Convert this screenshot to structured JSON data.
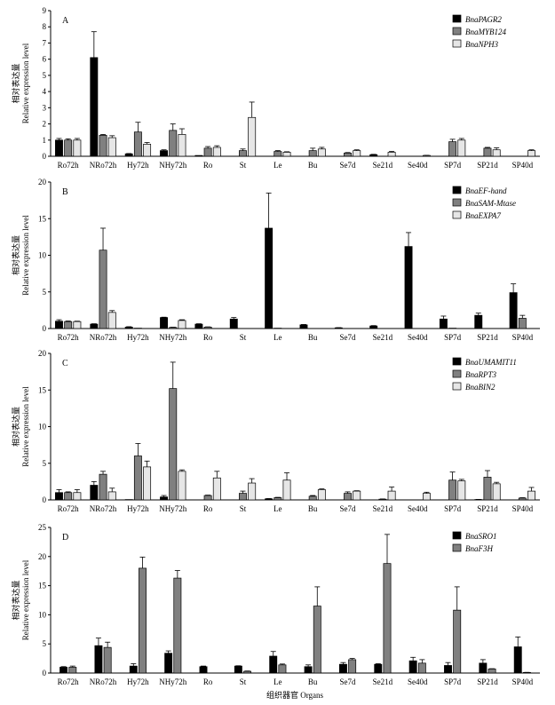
{
  "x_axis_title": "组织器官 Organs",
  "y_axis_title_cn": "相对表达量",
  "y_axis_title_en": "Relative expression level",
  "colors": {
    "black": "#000000",
    "gray": "#808080",
    "light": "#e6e6e6"
  },
  "chart_data": [
    {
      "type": "bar",
      "panel": "A",
      "categories": [
        "Ro72h",
        "NRo72h",
        "Hy72h",
        "NHy72h",
        "Ro",
        "St",
        "Le",
        "Bu",
        "Se7d",
        "Se21d",
        "Se40d",
        "SP7d",
        "SP21d",
        "SP40d"
      ],
      "ylim": [
        0,
        9
      ],
      "yticks": [
        0,
        1,
        2,
        3,
        4,
        5,
        6,
        7,
        8,
        9
      ],
      "legend_position": "top-right",
      "series": [
        {
          "name": "BnaPAGR2",
          "color": "#000000",
          "values": [
            1.0,
            6.1,
            0.15,
            0.35,
            0.05,
            0.0,
            0.0,
            0.0,
            0.0,
            0.1,
            0.0,
            0.0,
            0.0,
            0.0
          ],
          "errors": [
            0.1,
            1.6,
            0.02,
            0.05,
            0.0,
            0.0,
            0.0,
            0.0,
            0.0,
            0.02,
            0.0,
            0.0,
            0.0,
            0.0
          ]
        },
        {
          "name": "BnaMYB124",
          "color": "#808080",
          "values": [
            1.0,
            1.3,
            1.5,
            1.6,
            0.5,
            0.35,
            0.3,
            0.35,
            0.2,
            0.0,
            0.0,
            0.9,
            0.5,
            0.0
          ],
          "errors": [
            0.08,
            0.05,
            0.6,
            0.4,
            0.1,
            0.1,
            0.05,
            0.15,
            0.03,
            0.0,
            0.0,
            0.15,
            0.05,
            0.0
          ],
          "skip": [
            false,
            false,
            false,
            false,
            false,
            false,
            false,
            false,
            false,
            true,
            true,
            false,
            false,
            true
          ]
        },
        {
          "name": "BnaNPH3",
          "color": "#e6e6e6",
          "values": [
            1.0,
            1.15,
            0.75,
            1.35,
            0.55,
            2.4,
            0.25,
            0.45,
            0.35,
            0.25,
            0.05,
            1.0,
            0.4,
            0.35
          ],
          "errors": [
            0.1,
            0.12,
            0.1,
            0.35,
            0.1,
            0.95,
            0.03,
            0.1,
            0.05,
            0.05,
            0.01,
            0.1,
            0.12,
            0.05
          ]
        }
      ]
    },
    {
      "type": "bar",
      "panel": "B",
      "categories": [
        "Ro72h",
        "NRo72h",
        "Hy72h",
        "NHy72h",
        "Ro",
        "St",
        "Le",
        "Bu",
        "Se7d",
        "Se21d",
        "Se40d",
        "SP7d",
        "SP21d",
        "SP40d"
      ],
      "ylim": [
        0,
        20
      ],
      "yticks": [
        0,
        5,
        10,
        15,
        20
      ],
      "legend_position": "top-right",
      "series": [
        {
          "name": "BnaEF-hand",
          "color": "#000000",
          "values": [
            1.0,
            0.6,
            0.2,
            1.5,
            0.6,
            1.3,
            13.7,
            0.5,
            0.1,
            0.35,
            11.2,
            1.3,
            1.8,
            4.9
          ],
          "errors": [
            0.2,
            0.05,
            0.05,
            0.05,
            0.05,
            0.2,
            4.8,
            0.05,
            0.02,
            0.05,
            1.9,
            0.4,
            0.3,
            1.2
          ]
        },
        {
          "name": "BnaSAM-Mtase",
          "color": "#808080",
          "values": [
            0.95,
            10.7,
            0.05,
            0.15,
            0.2,
            0.0,
            0.05,
            0.0,
            0.0,
            0.0,
            0.0,
            0.05,
            0.0,
            1.4
          ],
          "errors": [
            0.08,
            3.0,
            0.0,
            0.03,
            0.03,
            0.0,
            0.0,
            0.0,
            0.0,
            0.0,
            0.0,
            0.0,
            0.0,
            0.4
          ]
        },
        {
          "name": "BnaEXPA7",
          "color": "#e6e6e6",
          "values": [
            0.95,
            2.2,
            0.0,
            1.1,
            0.0,
            0.0,
            0.0,
            0.0,
            0.0,
            0.0,
            0.0,
            0.0,
            0.0,
            0.0
          ],
          "errors": [
            0.05,
            0.25,
            0.0,
            0.1,
            0.0,
            0.0,
            0.0,
            0.0,
            0.0,
            0.0,
            0.0,
            0.0,
            0.0,
            0.0
          ]
        }
      ]
    },
    {
      "type": "bar",
      "panel": "C",
      "categories": [
        "Ro72h",
        "NRo72h",
        "Hy72h",
        "NHy72h",
        "Ro",
        "St",
        "Le",
        "Bu",
        "Se7d",
        "Se21d",
        "Se40d",
        "SP7d",
        "SP21d",
        "SP40d"
      ],
      "ylim": [
        0,
        20
      ],
      "yticks": [
        0,
        5,
        10,
        15,
        20
      ],
      "legend_position": "top-right",
      "series": [
        {
          "name": "BnaUMAMIT11",
          "color": "#000000",
          "values": [
            1.0,
            2.0,
            0.05,
            0.4,
            0.0,
            0.0,
            0.15,
            0.0,
            0.0,
            0.0,
            0.0,
            0.0,
            0.05,
            0.0
          ],
          "errors": [
            0.4,
            0.5,
            0.0,
            0.2,
            0.0,
            0.0,
            0.03,
            0.0,
            0.0,
            0.0,
            0.0,
            0.0,
            0.02,
            0.0
          ]
        },
        {
          "name": "BnaRPT3",
          "color": "#808080",
          "values": [
            1.0,
            3.5,
            6.0,
            15.2,
            0.6,
            0.9,
            0.3,
            0.5,
            0.9,
            0.1,
            0.0,
            2.7,
            3.1,
            0.25
          ],
          "errors": [
            0.1,
            0.4,
            1.7,
            3.6,
            0.05,
            0.3,
            0.05,
            0.1,
            0.2,
            0.03,
            0.0,
            1.1,
            0.9,
            0.05
          ]
        },
        {
          "name": "BnaBIN2",
          "color": "#e6e6e6",
          "values": [
            1.0,
            1.1,
            4.5,
            3.9,
            3.0,
            2.3,
            2.7,
            1.4,
            1.2,
            1.2,
            0.9,
            2.6,
            2.2,
            1.2
          ],
          "errors": [
            0.4,
            0.5,
            0.8,
            0.2,
            0.9,
            0.6,
            1.0,
            0.1,
            0.05,
            0.55,
            0.15,
            0.2,
            0.2,
            0.5
          ]
        }
      ]
    },
    {
      "type": "bar",
      "panel": "D",
      "categories": [
        "Ro72h",
        "NRo72h",
        "Hy72h",
        "NHy72h",
        "Ro",
        "St",
        "Le",
        "Bu",
        "Se7d",
        "Se21d",
        "Se40d",
        "SP7d",
        "SP21d",
        "SP40d"
      ],
      "ylim": [
        0,
        25
      ],
      "yticks": [
        0,
        5,
        10,
        15,
        20,
        25
      ],
      "legend_position": "top-right",
      "series": [
        {
          "name": "BnaSRO1",
          "color": "#000000",
          "values": [
            1.0,
            4.7,
            1.2,
            3.4,
            1.1,
            1.2,
            2.9,
            1.1,
            1.5,
            1.5,
            2.1,
            1.3,
            1.7,
            4.5
          ],
          "errors": [
            0.1,
            1.3,
            0.4,
            0.4,
            0.1,
            0.05,
            0.8,
            0.3,
            0.3,
            0.1,
            0.6,
            0.5,
            0.6,
            1.7
          ]
        },
        {
          "name": "BnaF3H",
          "color": "#808080",
          "values": [
            1.0,
            4.4,
            18.0,
            16.3,
            0.0,
            0.3,
            1.4,
            11.5,
            2.3,
            18.8,
            1.7,
            10.8,
            0.7,
            0.1
          ],
          "errors": [
            0.2,
            0.9,
            1.9,
            1.3,
            0.0,
            0.05,
            0.15,
            3.3,
            0.2,
            5.0,
            0.6,
            4.0,
            0.05,
            0.02
          ]
        }
      ]
    }
  ]
}
